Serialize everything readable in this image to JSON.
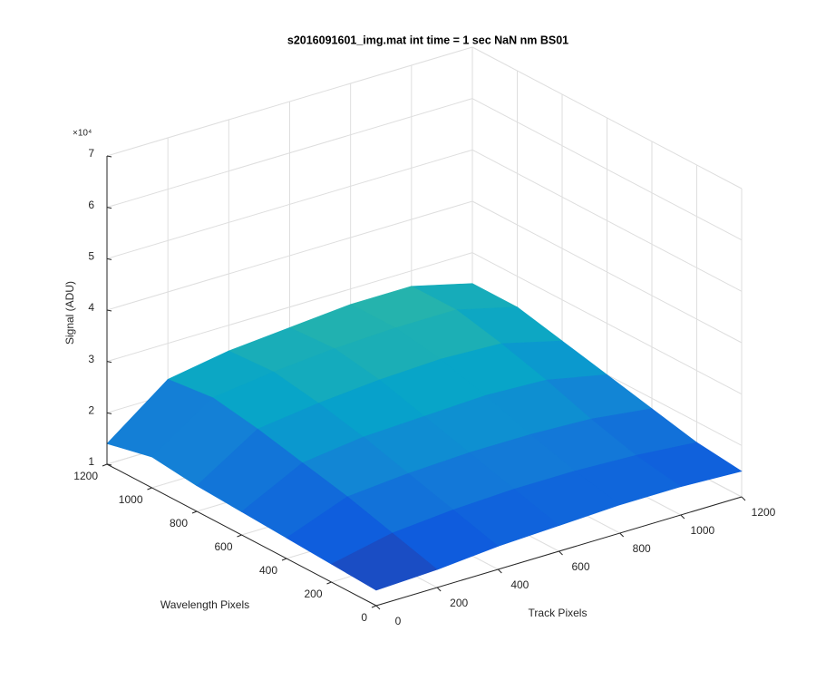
{
  "chart_data": {
    "type": "surface",
    "title": "s2016091601_img.mat int time = 1 sec  NaN nm BS01",
    "xlabel": "Track Pixels",
    "ylabel": "Wavelength Pixels",
    "zlabel": "Signal (ADU)",
    "z_multiplier": "×10⁴",
    "x": [
      0,
      200,
      400,
      600,
      800,
      1000,
      1200
    ],
    "y": [
      0,
      200,
      400,
      600,
      800,
      1000,
      1200
    ],
    "z": [
      [
        1.3,
        1.35,
        1.45,
        1.5,
        1.55,
        1.55,
        1.5
      ],
      [
        1.35,
        1.6,
        1.7,
        1.75,
        1.75,
        1.7,
        1.6
      ],
      [
        1.4,
        1.85,
        1.95,
        2.0,
        2.0,
        1.95,
        1.8
      ],
      [
        1.45,
        2.05,
        2.2,
        2.25,
        2.3,
        2.25,
        2.0
      ],
      [
        1.5,
        2.25,
        2.4,
        2.5,
        2.55,
        2.5,
        2.2
      ],
      [
        1.6,
        2.4,
        2.55,
        2.65,
        2.7,
        2.7,
        2.4
      ],
      [
        1.4,
        2.3,
        2.5,
        2.6,
        2.7,
        2.7,
        2.4
      ]
    ],
    "xlim": [
      0,
      1200
    ],
    "ylim": [
      0,
      1200
    ],
    "zlim": [
      1,
      7
    ],
    "xticks": [
      0,
      200,
      400,
      600,
      800,
      1000,
      1200
    ],
    "yticks": [
      0,
      200,
      400,
      600,
      800,
      1000,
      1200
    ],
    "zticks": [
      1,
      2,
      3,
      4,
      5,
      6,
      7
    ],
    "colormap": "parula",
    "clim": [
      1.1,
      4.5
    ],
    "grid": true
  }
}
